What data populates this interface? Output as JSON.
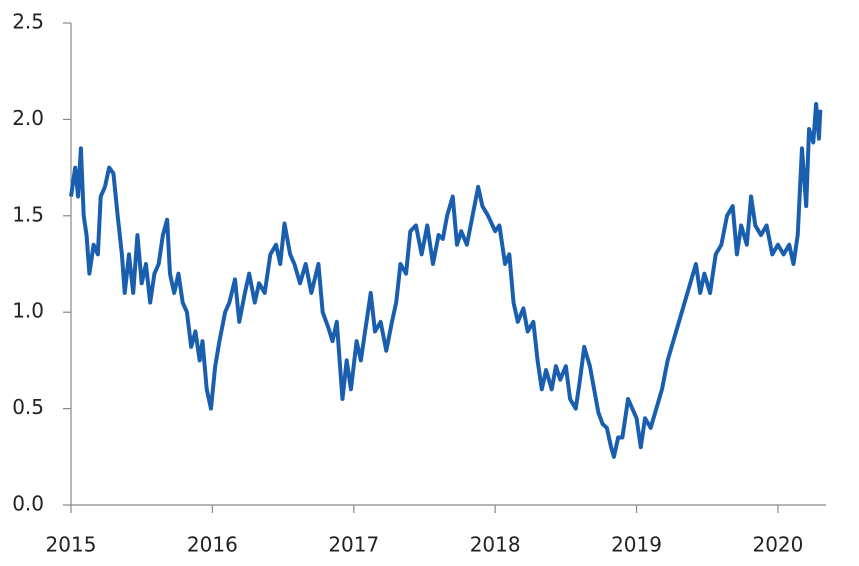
{
  "chart_data": {
    "type": "line",
    "x": [
      2015.0,
      2015.03,
      2015.05,
      2015.07,
      2015.09,
      2015.11,
      2015.13,
      2015.16,
      2015.19,
      2015.21,
      2015.24,
      2015.27,
      2015.3,
      2015.33,
      2015.36,
      2015.38,
      2015.41,
      2015.44,
      2015.47,
      2015.5,
      2015.53,
      2015.56,
      2015.59,
      2015.62,
      2015.65,
      2015.68,
      2015.7,
      2015.73,
      2015.76,
      2015.79,
      2015.82,
      2015.85,
      2015.88,
      2015.91,
      2015.93,
      2015.96,
      2015.99,
      2016.02,
      2016.05,
      2016.09,
      2016.12,
      2016.16,
      2016.19,
      2016.23,
      2016.26,
      2016.3,
      2016.33,
      2016.37,
      2016.41,
      2016.45,
      2016.48,
      2016.51,
      2016.55,
      2016.58,
      2016.62,
      2016.66,
      2016.7,
      2016.75,
      2016.78,
      2016.82,
      2016.85,
      2016.88,
      2016.92,
      2016.95,
      2016.98,
      2017.02,
      2017.05,
      2017.09,
      2017.12,
      2017.15,
      2017.19,
      2017.23,
      2017.27,
      2017.3,
      2017.33,
      2017.37,
      2017.4,
      2017.44,
      2017.48,
      2017.52,
      2017.56,
      2017.6,
      2017.63,
      2017.66,
      2017.7,
      2017.73,
      2017.76,
      2017.8,
      2017.84,
      2017.88,
      2017.91,
      2017.95,
      2018.0,
      2018.03,
      2018.07,
      2018.1,
      2018.13,
      2018.16,
      2018.2,
      2018.23,
      2018.27,
      2018.3,
      2018.33,
      2018.36,
      2018.4,
      2018.43,
      2018.46,
      2018.5,
      2018.53,
      2018.57,
      2018.6,
      2018.63,
      2018.67,
      2018.7,
      2018.73,
      2018.76,
      2018.79,
      2018.82,
      2018.84,
      2018.87,
      2018.9,
      2018.94,
      2018.97,
      2019.0,
      2019.03,
      2019.06,
      2019.1,
      2019.14,
      2019.18,
      2019.22,
      2019.26,
      2019.3,
      2019.34,
      2019.38,
      2019.42,
      2019.45,
      2019.48,
      2019.52,
      2019.56,
      2019.6,
      2019.64,
      2019.68,
      2019.71,
      2019.74,
      2019.78,
      2019.81,
      2019.84,
      2019.88,
      2019.92,
      2019.96,
      2020.0,
      2020.04,
      2020.08,
      2020.11,
      2020.14,
      2020.17,
      2020.2,
      2020.22,
      2020.25,
      2020.27,
      2020.29,
      2020.3
    ],
    "series": [
      {
        "color": "#1a5faf",
        "values": [
          1.6,
          1.75,
          1.6,
          1.85,
          1.5,
          1.4,
          1.2,
          1.35,
          1.3,
          1.6,
          1.65,
          1.75,
          1.72,
          1.5,
          1.3,
          1.1,
          1.3,
          1.1,
          1.4,
          1.15,
          1.25,
          1.05,
          1.2,
          1.25,
          1.4,
          1.48,
          1.2,
          1.1,
          1.2,
          1.05,
          1.0,
          0.82,
          0.9,
          0.75,
          0.85,
          0.6,
          0.5,
          0.72,
          0.85,
          1.0,
          1.05,
          1.17,
          0.95,
          1.1,
          1.2,
          1.05,
          1.15,
          1.1,
          1.3,
          1.35,
          1.25,
          1.46,
          1.3,
          1.25,
          1.15,
          1.25,
          1.1,
          1.25,
          1.0,
          0.92,
          0.85,
          0.95,
          0.55,
          0.75,
          0.6,
          0.85,
          0.75,
          0.95,
          1.1,
          0.9,
          0.95,
          0.8,
          0.95,
          1.05,
          1.25,
          1.2,
          1.42,
          1.45,
          1.3,
          1.45,
          1.25,
          1.4,
          1.38,
          1.5,
          1.6,
          1.35,
          1.42,
          1.35,
          1.5,
          1.65,
          1.55,
          1.5,
          1.42,
          1.45,
          1.25,
          1.3,
          1.05,
          0.95,
          1.02,
          0.9,
          0.95,
          0.75,
          0.6,
          0.7,
          0.6,
          0.72,
          0.65,
          0.72,
          0.55,
          0.5,
          0.65,
          0.82,
          0.72,
          0.6,
          0.48,
          0.42,
          0.4,
          0.3,
          0.25,
          0.35,
          0.35,
          0.55,
          0.5,
          0.45,
          0.3,
          0.45,
          0.4,
          0.5,
          0.6,
          0.75,
          0.85,
          0.95,
          1.05,
          1.15,
          1.25,
          1.1,
          1.2,
          1.1,
          1.3,
          1.35,
          1.5,
          1.55,
          1.3,
          1.45,
          1.35,
          1.6,
          1.45,
          1.4,
          1.45,
          1.3,
          1.35,
          1.3,
          1.35,
          1.25,
          1.4,
          1.85,
          1.55,
          1.95,
          1.88,
          2.08,
          1.9,
          2.05
        ]
      }
    ],
    "xlim": [
      2015,
      2020.34
    ],
    "xticks": [
      2015,
      2016,
      2017,
      2018,
      2019,
      2020
    ],
    "ylim": [
      0,
      2.5
    ],
    "yticks": [
      {
        "value": 0,
        "label": "0.0"
      },
      0.5,
      {
        "value": 1,
        "label": "1.0"
      },
      1.5,
      {
        "value": 2,
        "label": "2.0"
      },
      2.5
    ]
  }
}
